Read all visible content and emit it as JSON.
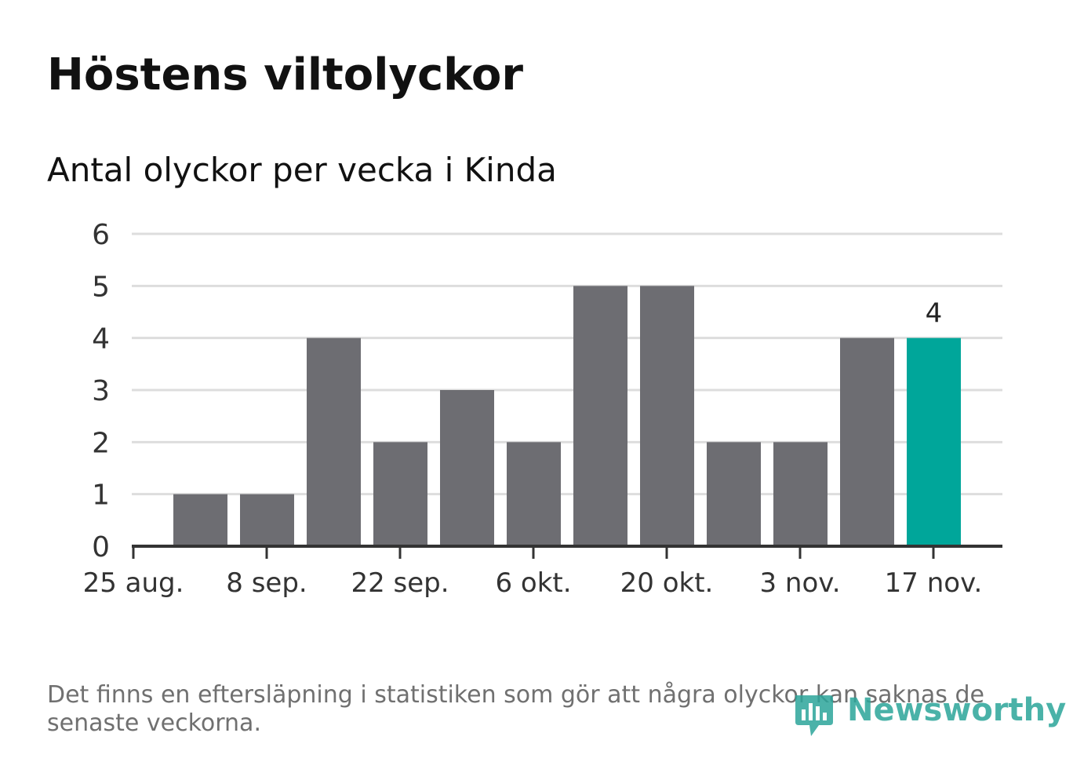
{
  "title": "Höstens viltolyckor",
  "subtitle": "Antal olyckor per vecka i Kinda",
  "footnote": "Det finns en eftersläpning i statistiken som gör att några olyckor kan saknas de senaste veckorna.",
  "logo": {
    "text": "Newsworthy",
    "icon": "bar-chart-speech-bubble-icon"
  },
  "colors": {
    "bar": "#6d6d72",
    "highlight": "#00a69a",
    "grid": "#dddddd",
    "axis": "#333333",
    "text": "#333333"
  },
  "chart_data": {
    "type": "bar",
    "title": "Höstens viltolyckor",
    "subtitle": "Antal olyckor per vecka i Kinda",
    "x": [
      "2 sep.",
      "9 sep.",
      "16 sep.",
      "23 sep.",
      "30 sep.",
      "7 okt.",
      "14 okt.",
      "21 okt.",
      "28 okt.",
      "4 nov.",
      "11 nov.",
      "18 nov."
    ],
    "values": [
      1,
      1,
      4,
      2,
      3,
      2,
      5,
      5,
      2,
      2,
      4,
      4
    ],
    "x_ticks": [
      "25 aug.",
      "8 sep.",
      "22 sep.",
      "6 okt.",
      "20 okt.",
      "3 nov.",
      "17 nov."
    ],
    "y_ticks": [
      "0",
      "1",
      "2",
      "3",
      "4",
      "5",
      "6"
    ],
    "ylim": [
      0,
      6
    ],
    "highlight_index": 11,
    "highlight_label": "4",
    "grid": true,
    "legend": "none"
  }
}
